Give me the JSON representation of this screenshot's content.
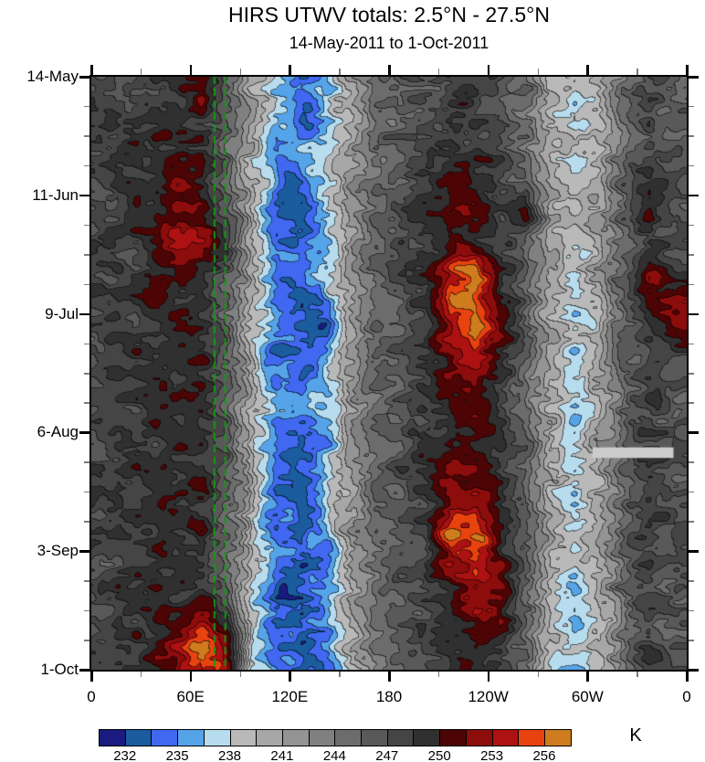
{
  "chart_data": {
    "type": "heatmap",
    "title": "HIRS UTWV totals: 2.5°N - 27.5°N",
    "subtitle": "14-May-2011 to 1-Oct-2011",
    "value_unit": "K",
    "x_axis": {
      "range_deg_east": [
        0,
        360
      ],
      "minor_step_deg": 30,
      "ticks": [
        {
          "lon": 0,
          "label": "0"
        },
        {
          "lon": 60,
          "label": "60E"
        },
        {
          "lon": 120,
          "label": "120E"
        },
        {
          "lon": 180,
          "label": "180"
        },
        {
          "lon": 240,
          "label": "120W"
        },
        {
          "lon": 300,
          "label": "60W"
        },
        {
          "lon": 360,
          "label": "0"
        }
      ]
    },
    "y_axis": {
      "range_days": [
        0,
        140
      ],
      "minor_step_days": 7,
      "ticks": [
        {
          "day": 0,
          "label": "14-May"
        },
        {
          "day": 28,
          "label": "11-Jun"
        },
        {
          "day": 56,
          "label": "9-Jul"
        },
        {
          "day": 84,
          "label": "6-Aug"
        },
        {
          "day": 112,
          "label": "3-Sep"
        },
        {
          "day": 140,
          "label": "1-Oct"
        }
      ]
    },
    "colorbar": {
      "unit": "K",
      "level_boundaries": [
        232,
        233.5,
        235,
        236.5,
        238,
        239.5,
        241,
        242.5,
        244,
        245.5,
        247,
        248.5,
        250,
        251.5,
        253,
        254.5,
        256
      ],
      "tick_labels": [
        "232",
        "235",
        "238",
        "241",
        "244",
        "247",
        "250",
        "253",
        "256"
      ],
      "colors": [
        "#1a1a80",
        "#1a5c9e",
        "#4068f0",
        "#55a4ea",
        "#b7dcee",
        "#b9b9b9",
        "#a7a7a7",
        "#949494",
        "#808080",
        "#6c6c6c",
        "#595959",
        "#454545",
        "#303030",
        "#4d0404",
        "#8d0c0c",
        "#ad1111",
        "#e8430e",
        "#cf7c1e"
      ]
    },
    "annotations": {
      "green_dashed_lines": {
        "color": "#149a14",
        "lons_deg_east": [
          74.5,
          81
        ],
        "style": "vertical-dashed"
      },
      "missing_data_bar": {
        "color": "#cccccc",
        "lon_deg_east": [
          303,
          352
        ],
        "days": [
          87.5,
          90
        ]
      }
    },
    "grid": {
      "units": "K",
      "lon_start_deg_east": 7.5,
      "lon_step_deg": 15,
      "day_start": 3.5,
      "day_step_days": 7,
      "values": [
        [
          247,
          248,
          248,
          249,
          252,
          246,
          240,
          236,
          234,
          237,
          241,
          245,
          247,
          247,
          248,
          248,
          247,
          245,
          240,
          238,
          241,
          245,
          247,
          246
        ],
        [
          248,
          248,
          249,
          249,
          249,
          246,
          241,
          236,
          233,
          236,
          240,
          244,
          246,
          247,
          249,
          248,
          247,
          244,
          240,
          237,
          240,
          244,
          248,
          246
        ],
        [
          248,
          249,
          248,
          250,
          249,
          245,
          240,
          234,
          236,
          238,
          241,
          245,
          247,
          248,
          249,
          249,
          248,
          245,
          241,
          238,
          240,
          245,
          247,
          247
        ],
        [
          247,
          248,
          249,
          252,
          250,
          246,
          239,
          235,
          234,
          237,
          242,
          245,
          246,
          248,
          250,
          249,
          248,
          246,
          240,
          239,
          241,
          246,
          248,
          247
        ],
        [
          248,
          249,
          249,
          252,
          250,
          246,
          240,
          234,
          233,
          238,
          242,
          246,
          247,
          249,
          251,
          250,
          248,
          252,
          241,
          239,
          241,
          246,
          252,
          247
        ],
        [
          248,
          248,
          249,
          253,
          252,
          247,
          240,
          235,
          234,
          236,
          241,
          245,
          247,
          248,
          250,
          249,
          248,
          246,
          241,
          238,
          240,
          245,
          248,
          247
        ],
        [
          247,
          248,
          249,
          252,
          250,
          246,
          239,
          234,
          235,
          237,
          242,
          246,
          247,
          249,
          254,
          257,
          250,
          246,
          241,
          239,
          241,
          246,
          252,
          248
        ],
        [
          248,
          249,
          250,
          249,
          249,
          246,
          240,
          235,
          233,
          236,
          241,
          245,
          247,
          249,
          257,
          256,
          250,
          246,
          240,
          238,
          240,
          246,
          252,
          252
        ],
        [
          247,
          248,
          249,
          250,
          249,
          245,
          239,
          234,
          233,
          231,
          240,
          245,
          246,
          248,
          253,
          257,
          251,
          246,
          240,
          237,
          240,
          245,
          249,
          252
        ],
        [
          248,
          249,
          249,
          249,
          250,
          246,
          239,
          234,
          233,
          236,
          242,
          246,
          247,
          248,
          252,
          254,
          250,
          246,
          241,
          238,
          241,
          246,
          248,
          247
        ],
        [
          247,
          248,
          249,
          250,
          249,
          246,
          240,
          235,
          234,
          237,
          241,
          245,
          247,
          248,
          250,
          252,
          249,
          245,
          240,
          238,
          240,
          245,
          248,
          246
        ],
        [
          248,
          248,
          249,
          249,
          250,
          246,
          239,
          234,
          235,
          237,
          242,
          245,
          246,
          248,
          250,
          250,
          248,
          245,
          240,
          237,
          240,
          245,
          247,
          246
        ],
        [
          247,
          249,
          248,
          250,
          249,
          245,
          239,
          235,
          233,
          236,
          241,
          245,
          247,
          249,
          251,
          250,
          249,
          246,
          241,
          238,
          241,
          246,
          248,
          247
        ],
        [
          248,
          248,
          249,
          249,
          250,
          246,
          240,
          234,
          234,
          236,
          241,
          245,
          247,
          248,
          252,
          251,
          249,
          246,
          240,
          238,
          240,
          245,
          248,
          246
        ],
        [
          247,
          248,
          249,
          250,
          249,
          246,
          239,
          234,
          233,
          236,
          241,
          245,
          246,
          248,
          252,
          253,
          250,
          246,
          240,
          237,
          240,
          245,
          248,
          247
        ],
        [
          248,
          249,
          248,
          249,
          250,
          246,
          239,
          235,
          234,
          236,
          242,
          245,
          247,
          248,
          257,
          256,
          250,
          246,
          241,
          238,
          241,
          246,
          248,
          247
        ],
        [
          247,
          248,
          249,
          250,
          249,
          245,
          238,
          234,
          233,
          235,
          241,
          245,
          246,
          248,
          252,
          254,
          251,
          246,
          240,
          238,
          240,
          245,
          248,
          246
        ],
        [
          248,
          249,
          249,
          249,
          250,
          245,
          238,
          233,
          234,
          236,
          240,
          244,
          246,
          248,
          250,
          253,
          252,
          246,
          240,
          237,
          240,
          245,
          247,
          246
        ],
        [
          247,
          248,
          249,
          252,
          254,
          250,
          239,
          234,
          233,
          235,
          240,
          244,
          246,
          247,
          249,
          251,
          250,
          245,
          240,
          237,
          239,
          244,
          247,
          246
        ],
        [
          248,
          249,
          250,
          253,
          257,
          252,
          238,
          234,
          234,
          235,
          240,
          244,
          246,
          247,
          249,
          250,
          249,
          245,
          239,
          237,
          239,
          244,
          248,
          246
        ]
      ]
    }
  }
}
